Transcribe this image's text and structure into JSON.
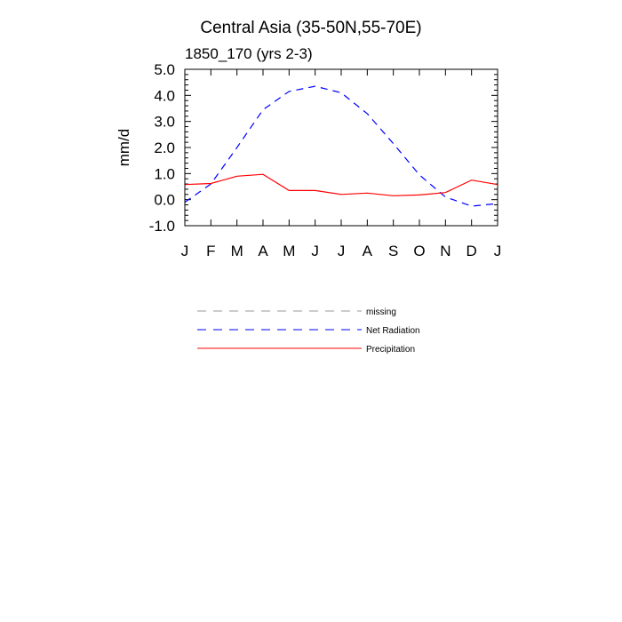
{
  "chart_data": {
    "type": "line",
    "title": "Central Asia (35-50N,55-70E)",
    "subtitle": "1850_170 (yrs 2-3)",
    "ylabel": "mm/d",
    "xlabel": "",
    "ylim": [
      -1.0,
      5.0
    ],
    "yticks": [
      "5.0",
      "4.0",
      "3.0",
      "2.0",
      "1.0",
      "0.0",
      "-1.0"
    ],
    "ytick_values": [
      5.0,
      4.0,
      3.0,
      2.0,
      1.0,
      0.0,
      -1.0
    ],
    "categories": [
      "J",
      "F",
      "M",
      "A",
      "M",
      "J",
      "J",
      "A",
      "S",
      "O",
      "N",
      "D",
      "J"
    ],
    "series": [
      {
        "name": "Net Radiation",
        "color": "#0000ff",
        "dash": "dashed",
        "values": [
          -0.1,
          0.6,
          2.0,
          3.45,
          4.15,
          4.35,
          4.1,
          3.3,
          2.15,
          0.95,
          0.1,
          -0.25,
          -0.15
        ]
      },
      {
        "name": "Precipitation",
        "color": "#ff0000",
        "dash": "solid",
        "values": [
          0.58,
          0.62,
          0.9,
          0.97,
          0.35,
          0.35,
          0.2,
          0.25,
          0.15,
          0.18,
          0.27,
          0.75,
          0.58
        ]
      }
    ],
    "legend": [
      {
        "label": "missing",
        "color": "#999999",
        "dash": "dashed"
      },
      {
        "label": "Net Radiation",
        "color": "#0000ff",
        "dash": "dashed"
      },
      {
        "label": "Precipitation",
        "color": "#ff0000",
        "dash": "solid"
      }
    ],
    "grid": false,
    "legend_position": "below"
  }
}
